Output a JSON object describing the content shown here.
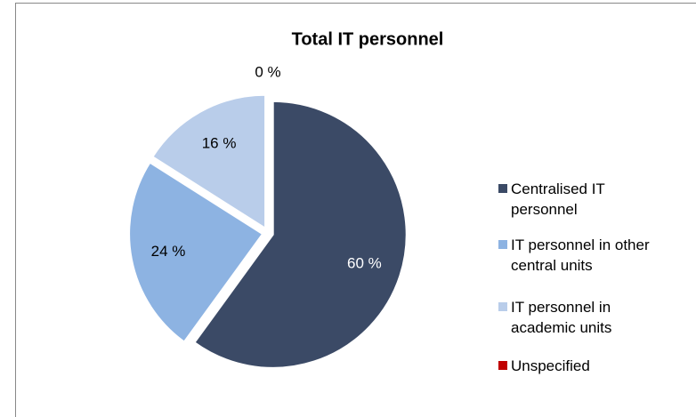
{
  "chart_data": {
    "type": "pie",
    "title": "Total IT personnel",
    "categories": [
      "Centralised IT personnel",
      "IT personnel in other central units",
      "IT personnel in academic units",
      "Unspecified"
    ],
    "values": [
      60,
      24,
      16,
      0
    ],
    "value_labels": [
      "60 %",
      "24 %",
      "16 %",
      "0 %"
    ],
    "colors": [
      "#3b4a66",
      "#8db3e2",
      "#b9cdea",
      "#c00000"
    ],
    "legend": "right"
  }
}
